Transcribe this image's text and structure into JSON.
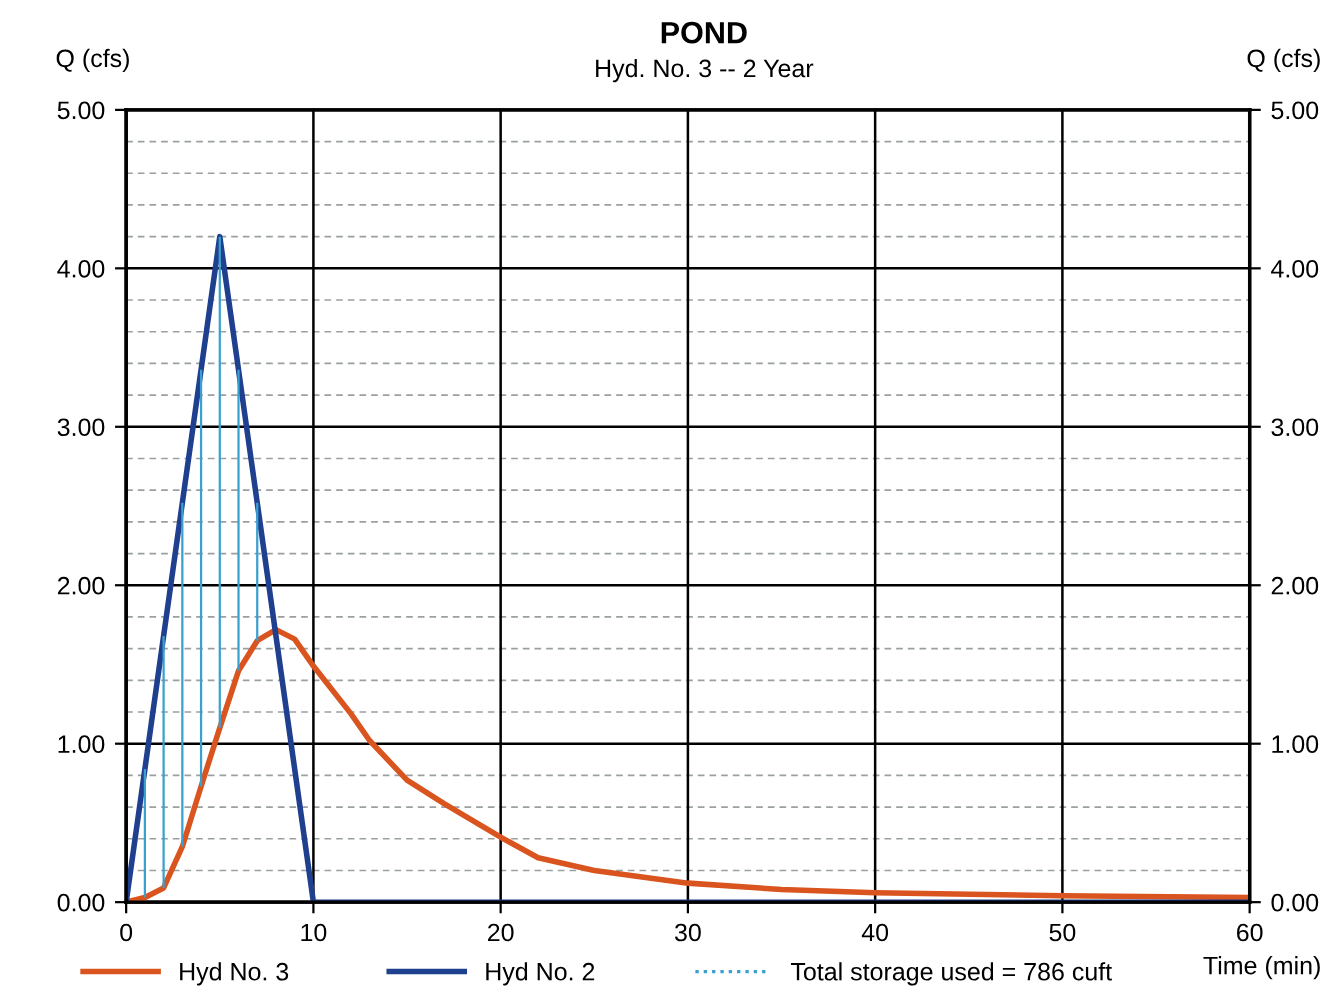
{
  "chart_data": {
    "type": "line",
    "title": "POND",
    "subtitle": "Hyd. No. 3 -- 2 Year",
    "xlabel": "Time (min)",
    "ylabel": "Q (cfs)",
    "y2label": "Q (cfs)",
    "xlim": [
      0,
      60
    ],
    "xticks": [
      0,
      10,
      20,
      30,
      40,
      50,
      60
    ],
    "ylim": [
      0,
      5
    ],
    "yticks": [
      {
        "value": 0,
        "label": "0.00"
      },
      {
        "value": 1,
        "label": "1.00"
      },
      {
        "value": 2,
        "label": "2.00"
      },
      {
        "value": 3,
        "label": "3.00"
      },
      {
        "value": 4,
        "label": "4.00"
      },
      {
        "value": 5,
        "label": "5.00"
      }
    ],
    "y2lim": [
      0,
      5
    ],
    "y2ticks": [
      {
        "value": 0,
        "label": "0.00"
      },
      {
        "value": 1,
        "label": "1.00"
      },
      {
        "value": 2,
        "label": "2.00"
      },
      {
        "value": 3,
        "label": "3.00"
      },
      {
        "value": 4,
        "label": "4.00"
      },
      {
        "value": 5,
        "label": "5.00"
      }
    ],
    "grid": true,
    "legend": "bottom",
    "marker": "none",
    "line_style": "solid",
    "series": [
      {
        "name": "Hyd No. 3",
        "color": "#d9541e",
        "x": [
          0,
          1,
          2,
          3,
          4,
          5,
          6,
          7,
          8,
          9,
          10,
          12,
          13,
          15,
          17,
          20,
          22,
          25,
          30,
          35,
          40,
          50,
          60
        ],
        "values": [
          0,
          0.03,
          0.09,
          0.35,
          0.73,
          1.1,
          1.46,
          1.65,
          1.72,
          1.66,
          1.49,
          1.19,
          1.02,
          0.77,
          0.62,
          0.41,
          0.28,
          0.2,
          0.12,
          0.08,
          0.06,
          0.04,
          0.03
        ]
      },
      {
        "name": "Hyd No. 2",
        "color": "#1f3f8f",
        "x": [
          0,
          5,
          10,
          60
        ],
        "values": [
          0,
          4.2,
          0,
          0
        ]
      },
      {
        "name": "Total storage used = 786 cuft",
        "type": "bar",
        "color": "#3aa0d0",
        "x": [
          1,
          2,
          3,
          4,
          5,
          6,
          7
        ],
        "base": [
          0.03,
          0.09,
          0.35,
          0.73,
          1.1,
          1.46,
          1.65
        ],
        "values": [
          0.81,
          1.59,
          2.17,
          2.63,
          3.1,
          1.9,
          0.87
        ]
      }
    ]
  }
}
